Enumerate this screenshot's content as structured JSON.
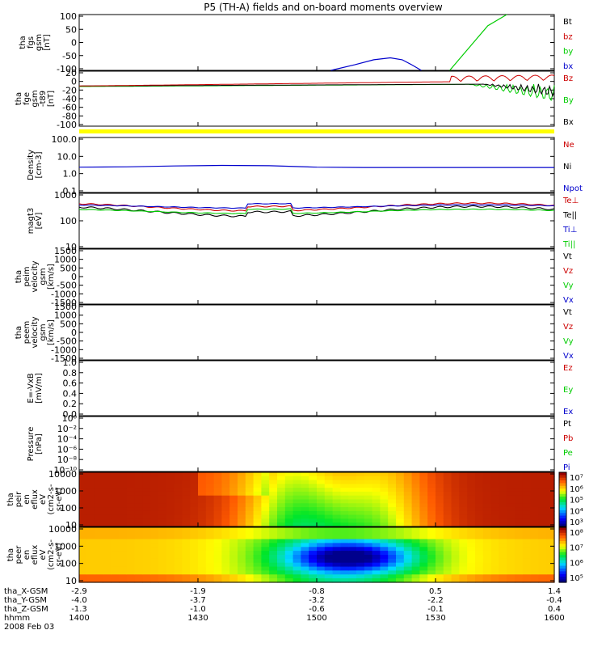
{
  "title": "P5 (TH-A) fields and on-board moments overview",
  "colors": {
    "black": "#000000",
    "red": "#cc0000",
    "green": "#00cc00",
    "blue": "#0000cc",
    "yellow": "#ffff00"
  },
  "chart_data": [
    {
      "id": "fgs",
      "type": "line",
      "ylabel": [
        "tha",
        "fgs",
        "gsm",
        "[nT]"
      ],
      "yticks": [
        "100",
        "50",
        "0",
        "-50",
        "-100"
      ],
      "ylim": [
        -100,
        100
      ],
      "legend": [
        {
          "label": "Bt",
          "color": "black"
        },
        {
          "label": "bz",
          "color": "red"
        },
        {
          "label": "by",
          "color": "green"
        },
        {
          "label": "bx",
          "color": "blue"
        }
      ],
      "series": [
        {
          "name": "bx",
          "color": "blue",
          "x": [
            0.53,
            0.58,
            0.62,
            0.655,
            0.68,
            0.7,
            0.72
          ],
          "y": [
            -100,
            -80,
            -62,
            -55,
            -62,
            -80,
            -100
          ]
        },
        {
          "name": "by",
          "color": "green",
          "x": [
            0.78,
            0.82,
            0.86,
            0.9
          ],
          "y": [
            -100,
            -20,
            60,
            100
          ]
        }
      ]
    },
    {
      "id": "fge",
      "type": "line",
      "ylabel": [
        "tha",
        "fge",
        "gsm",
        "-t89",
        "[nT]"
      ],
      "yticks": [
        "20",
        "0",
        "-20",
        "-40",
        "-60",
        "-80",
        "-100"
      ],
      "ylim": [
        -110,
        25
      ],
      "legend": [
        {
          "label": "Bz",
          "color": "red"
        },
        {
          "label": "By",
          "color": "green"
        },
        {
          "label": "Bx",
          "color": "black"
        }
      ]
    },
    {
      "id": "density",
      "type": "line",
      "log": true,
      "ylabel": [
        "Density",
        "[cm-3]"
      ],
      "yticks": [
        "100.0",
        "10.0",
        "1.0",
        "0.1"
      ],
      "legend": [
        {
          "label": "Ne",
          "color": "red"
        },
        {
          "label": "Ni",
          "color": "black"
        },
        {
          "label": "Npot",
          "color": "blue"
        }
      ],
      "series": [
        {
          "name": "Npot",
          "color": "blue",
          "x": [
            0,
            0.1,
            0.2,
            0.3,
            0.4,
            0.5,
            0.6,
            0.7,
            0.8,
            0.9,
            1
          ],
          "y": [
            2.4,
            2.5,
            2.8,
            3.0,
            2.9,
            2.4,
            2.3,
            2.3,
            2.3,
            2.3,
            2.3
          ]
        }
      ]
    },
    {
      "id": "temp",
      "type": "line",
      "log": true,
      "ylabel": [
        "magt3",
        "[eV]"
      ],
      "yticks": [
        "1000",
        "100",
        "10"
      ],
      "legend": [
        {
          "label": "Te⊥",
          "color": "red"
        },
        {
          "label": "Te||",
          "color": "black"
        },
        {
          "label": "Ti⊥",
          "color": "blue"
        },
        {
          "label": "Ti||",
          "color": "green"
        }
      ]
    },
    {
      "id": "peim",
      "type": "line",
      "ylabel": [
        "tha",
        "peim",
        "velocity",
        "gsm",
        "[km/s]"
      ],
      "yticks": [
        "1500",
        "1000",
        "500",
        "0",
        "-500",
        "-1000",
        "-1500"
      ],
      "legend": [
        {
          "label": "Vt",
          "color": "black"
        },
        {
          "label": "Vz",
          "color": "red"
        },
        {
          "label": "Vy",
          "color": "green"
        },
        {
          "label": "Vx",
          "color": "blue"
        }
      ]
    },
    {
      "id": "peem",
      "type": "line",
      "ylabel": [
        "tha",
        "peem",
        "velocity",
        "gsm",
        "[km/s]"
      ],
      "yticks": [
        "1500",
        "1000",
        "500",
        "0",
        "-500",
        "-1000",
        "-1500"
      ],
      "legend": [
        {
          "label": "Vt",
          "color": "black"
        },
        {
          "label": "Vz",
          "color": "red"
        },
        {
          "label": "Vy",
          "color": "green"
        },
        {
          "label": "Vx",
          "color": "blue"
        }
      ]
    },
    {
      "id": "exb",
      "type": "line",
      "ylabel": [
        "E=-VxB",
        "[mV/m]"
      ],
      "yticks": [
        "1.0",
        "0.8",
        "0.6",
        "0.4",
        "0.2",
        "0.0"
      ],
      "legend": [
        {
          "label": "Ez",
          "color": "red"
        },
        {
          "label": "Ey",
          "color": "green"
        },
        {
          "label": "Ex",
          "color": "blue"
        }
      ]
    },
    {
      "id": "pressure",
      "type": "line",
      "log": true,
      "ylabel": [
        "Pressure",
        "[nPa]"
      ],
      "yticks": [
        "10⁰",
        "10⁻²",
        "10⁻⁴",
        "10⁻⁶",
        "10⁻⁸",
        "10⁻¹⁰"
      ],
      "legend": [
        {
          "label": "Pt",
          "color": "black"
        },
        {
          "label": "Pb",
          "color": "red"
        },
        {
          "label": "Pe",
          "color": "green"
        },
        {
          "label": "Pi",
          "color": "blue"
        }
      ]
    },
    {
      "id": "peir",
      "type": "heatmap",
      "ylabel": [
        "tha",
        "peir",
        "en",
        "eflux",
        "eV",
        "(cm2-s-",
        "sr-eV)"
      ],
      "yticks": [
        "10000",
        "1000",
        "100",
        "10"
      ],
      "colorbar": [
        "10⁷",
        "10⁶",
        "10⁵",
        "10⁴",
        "10³"
      ]
    },
    {
      "id": "peer",
      "type": "heatmap",
      "ylabel": [
        "tha",
        "peer",
        "en",
        "eflux",
        "eV",
        "(cm2-s-",
        "sr-eV)"
      ],
      "yticks": [
        "10000",
        "1000",
        "100",
        "10"
      ],
      "colorbar": [
        "10⁸",
        "10⁷",
        "10⁶",
        "10⁵"
      ]
    }
  ],
  "xaxis": {
    "rows": [
      {
        "label": "tha_X-GSM",
        "values": [
          "-2.9",
          "-1.9",
          "-0.8",
          "0.5",
          "1.4"
        ]
      },
      {
        "label": "tha_Y-GSM",
        "values": [
          "-4.0",
          "-3.7",
          "-3.2",
          "-2.2",
          "-0.4"
        ]
      },
      {
        "label": "tha_Z-GSM",
        "values": [
          "-1.3",
          "-1.0",
          "-0.6",
          "-0.1",
          "0.4"
        ]
      },
      {
        "label": "hhmm",
        "values": [
          "1400",
          "1430",
          "1500",
          "1530",
          "1600"
        ]
      }
    ],
    "date": "2008 Feb 03"
  }
}
